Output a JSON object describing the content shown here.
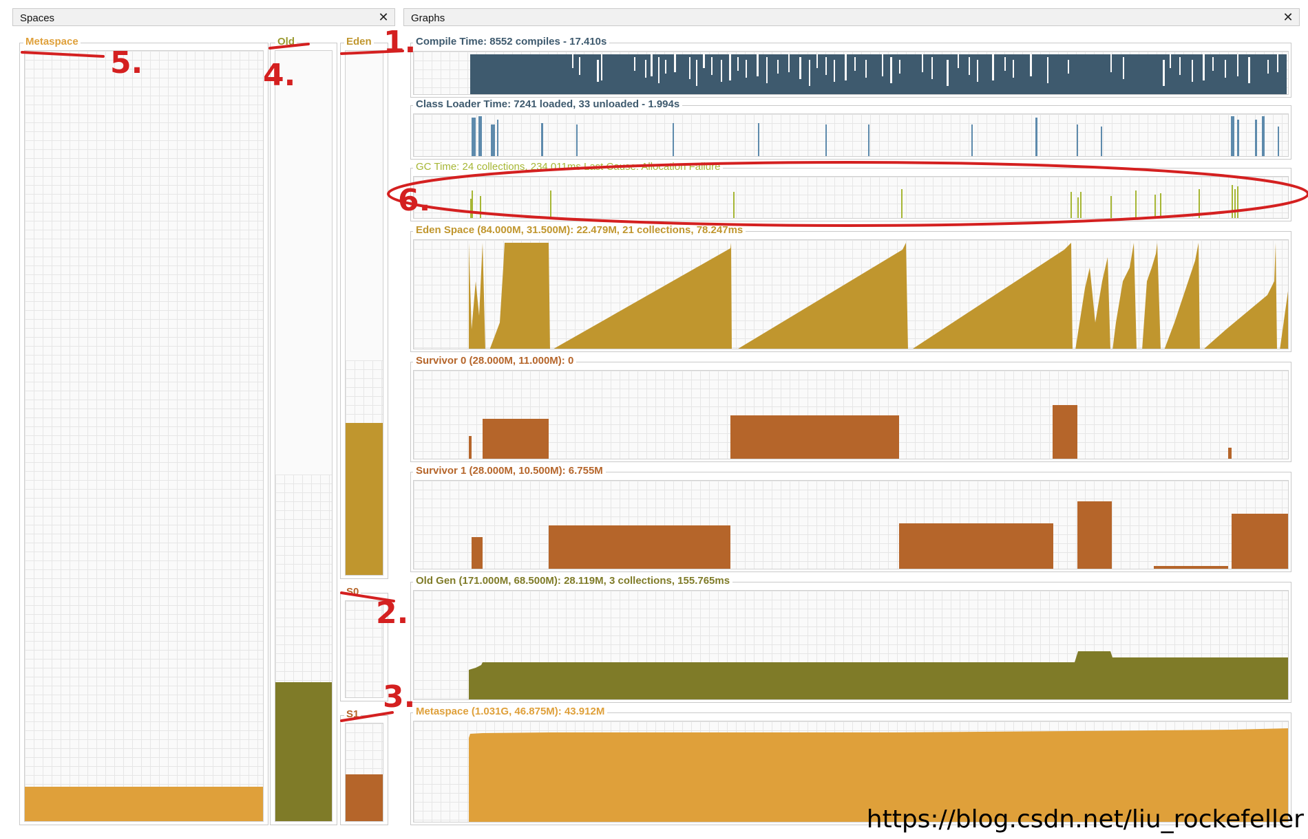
{
  "spaces_panel": {
    "title": "Spaces",
    "close_icon": "close-icon",
    "metaspace": {
      "label": "Metaspace",
      "fill_fraction": 0.045
    },
    "old": {
      "label": "Old",
      "fill_fraction": 0.41
    },
    "eden": {
      "label": "Eden",
      "fill_fraction": 0.36
    },
    "s0": {
      "label": "S0",
      "fill_fraction": 0.0
    },
    "s1": {
      "label": "S1",
      "fill_fraction": 0.48
    }
  },
  "graphs_panel": {
    "title": "Graphs",
    "close_icon": "close-icon",
    "compile": {
      "label": "Compile Time: 8552 compiles - 17.410s"
    },
    "classloader": {
      "label": "Class Loader Time: 7241 loaded, 33 unloaded - 1.994s"
    },
    "gc": {
      "label": "GC Time: 24 collections, 234.011ms Last Cause: Allocation Failure"
    },
    "eden": {
      "label": "Eden Space (84.000M, 31.500M): 22.479M, 21 collections, 78.247ms"
    },
    "s0": {
      "label": "Survivor 0 (28.000M, 11.000M): 0"
    },
    "s1": {
      "label": "Survivor 1 (28.000M, 10.500M): 6.755M"
    },
    "old": {
      "label": "Old Gen (171.000M, 68.500M): 28.119M, 3 collections, 155.765ms"
    },
    "metaspace": {
      "label": "Metaspace (1.031G, 46.875M): 43.912M"
    }
  },
  "annotations": [
    "1.",
    "2.",
    "3.",
    "4.",
    "5.",
    "6."
  ],
  "watermark": "https://blog.csdn.net/liu_rockefeller",
  "colors": {
    "metaspace": "#dfa03a",
    "old": "#7f7b28",
    "eden": "#c0962e",
    "survivor": "#b5652a",
    "compile": "#3e5a6e",
    "classloader": "#5d8aac",
    "gc": "#a6b634",
    "annotation": "#d42020",
    "label_blue": "#3e5a6e"
  }
}
